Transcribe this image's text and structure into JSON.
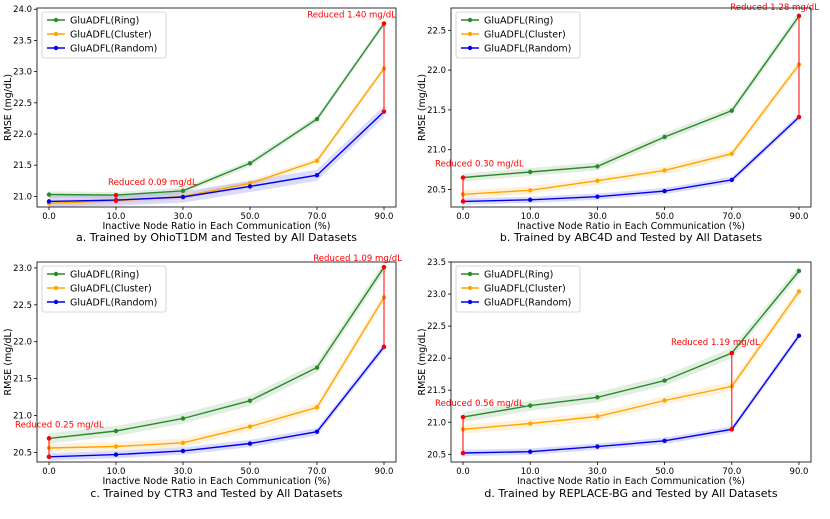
{
  "colors": {
    "ring": "#2a8a2a",
    "cluster": "#ffa500",
    "random": "#0000ee",
    "annotation": "#ff0000"
  },
  "chart_data": [
    {
      "type": "line",
      "xlabel": "Inactive Node Ratio in Each Communication (%)",
      "ylabel": "RMSE (mg/dL)",
      "caption": "a. Trained by OhioT1DM and Tested by All Datasets",
      "x": [
        "0.0",
        "10.0",
        "30.0",
        "50.0",
        "70.0",
        "90.0"
      ],
      "ylim": [
        20.83,
        24.02
      ],
      "yticks": [
        "21.0",
        "21.5",
        "22.0",
        "22.5",
        "23.0",
        "23.5",
        "24.0"
      ],
      "series": [
        {
          "name": "GluADFL(Ring)",
          "key": "ring",
          "values": [
            21.03,
            21.02,
            21.09,
            21.53,
            22.24,
            23.77
          ],
          "band": 0.05
        },
        {
          "name": "GluADFL(Cluster)",
          "key": "cluster",
          "values": [
            20.89,
            20.93,
            21.0,
            21.21,
            21.57,
            23.05
          ],
          "band": 0.05
        },
        {
          "name": "GluADFL(Random)",
          "key": "random",
          "values": [
            20.92,
            20.94,
            20.99,
            21.16,
            21.34,
            22.36
          ],
          "band": 0.09
        }
      ],
      "annotations": [
        {
          "text": "Reduced 0.09 mg/dL",
          "x_index": 1,
          "y_top": 21.02,
          "y_bottom": 20.93
        },
        {
          "text": "Reduced 1.40 mg/dL",
          "x_index": 5,
          "y_top": 23.77,
          "y_bottom": 22.36
        }
      ]
    },
    {
      "type": "line",
      "xlabel": "Inactive Node Ratio in Each Communication (%)",
      "ylabel": "RMSE (mg/dL)",
      "caption": "b. Trained by ABC4D and Tested by All Datasets",
      "x": [
        "0.0",
        "10.0",
        "30.0",
        "50.0",
        "70.0",
        "90.0"
      ],
      "ylim": [
        20.28,
        22.78
      ],
      "yticks": [
        "20.5",
        "21.0",
        "21.5",
        "22.0",
        "22.5"
      ],
      "series": [
        {
          "name": "GluADFL(Ring)",
          "key": "ring",
          "values": [
            20.65,
            20.72,
            20.79,
            21.16,
            21.49,
            22.68
          ],
          "band": 0.05
        },
        {
          "name": "GluADFL(Cluster)",
          "key": "cluster",
          "values": [
            20.44,
            20.49,
            20.61,
            20.74,
            20.95,
            22.07
          ],
          "band": 0.05
        },
        {
          "name": "GluADFL(Random)",
          "key": "random",
          "values": [
            20.35,
            20.37,
            20.41,
            20.48,
            20.62,
            21.41
          ],
          "band": 0.04
        }
      ],
      "annotations": [
        {
          "text": "Reduced 0.30 mg/dL",
          "x_index": 0,
          "y_top": 20.65,
          "y_bottom": 20.35
        },
        {
          "text": "Reduced 1.28 mg/dL",
          "x_index": 5,
          "y_top": 22.68,
          "y_bottom": 21.41
        }
      ]
    },
    {
      "type": "line",
      "xlabel": "Inactive Node Ratio in Each Communication (%)",
      "ylabel": "RMSE (mg/dL)",
      "caption": "c. Trained by CTR3 and Tested by All Datasets",
      "x": [
        "0.0",
        "10.0",
        "30.0",
        "50.0",
        "70.0",
        "90.0"
      ],
      "ylim": [
        20.37,
        23.08
      ],
      "yticks": [
        "20.5",
        "21.0",
        "21.5",
        "22.0",
        "22.5",
        "23.0"
      ],
      "series": [
        {
          "name": "GluADFL(Ring)",
          "key": "ring",
          "values": [
            20.69,
            20.79,
            20.96,
            21.2,
            21.65,
            23.01
          ],
          "band": 0.07
        },
        {
          "name": "GluADFL(Cluster)",
          "key": "cluster",
          "values": [
            20.56,
            20.58,
            20.63,
            20.85,
            21.11,
            22.6
          ],
          "band": 0.06
        },
        {
          "name": "GluADFL(Random)",
          "key": "random",
          "values": [
            20.44,
            20.47,
            20.52,
            20.62,
            20.78,
            21.93
          ],
          "band": 0.05
        }
      ],
      "annotations": [
        {
          "text": "Reduced 0.25 mg/dL",
          "x_index": 0,
          "y_top": 20.69,
          "y_bottom": 20.44
        },
        {
          "text": "Reduced 1.09 mg/dL",
          "x_index": 5,
          "y_top": 23.01,
          "y_bottom": 21.93
        }
      ]
    },
    {
      "type": "line",
      "xlabel": "Inactive Node Ratio in Each Communication (%)",
      "ylabel": "RMSE (mg/dL)",
      "caption": "d. Trained by REPLACE-BG and Tested by All Datasets",
      "x": [
        "0.0",
        "10.0",
        "30.0",
        "50.0",
        "70.0",
        "90.0"
      ],
      "ylim": [
        20.38,
        23.5
      ],
      "yticks": [
        "20.5",
        "21.0",
        "21.5",
        "22.0",
        "22.5",
        "23.0",
        "23.5"
      ],
      "series": [
        {
          "name": "GluADFL(Ring)",
          "key": "ring",
          "values": [
            21.08,
            21.26,
            21.39,
            21.65,
            22.08,
            23.36
          ],
          "band": 0.08
        },
        {
          "name": "GluADFL(Cluster)",
          "key": "cluster",
          "values": [
            20.89,
            20.98,
            21.09,
            21.34,
            21.56,
            23.04
          ],
          "band": 0.07
        },
        {
          "name": "GluADFL(Random)",
          "key": "random",
          "values": [
            20.52,
            20.54,
            20.62,
            20.71,
            20.89,
            22.35
          ],
          "band": 0.05
        }
      ],
      "annotations": [
        {
          "text": "Reduced 0.56 mg/dL",
          "x_index": 0,
          "y_top": 21.08,
          "y_bottom": 20.52
        },
        {
          "text": "Reduced 1.19 mg/dL",
          "x_index": 4,
          "y_top": 22.08,
          "y_bottom": 20.89
        }
      ]
    }
  ]
}
